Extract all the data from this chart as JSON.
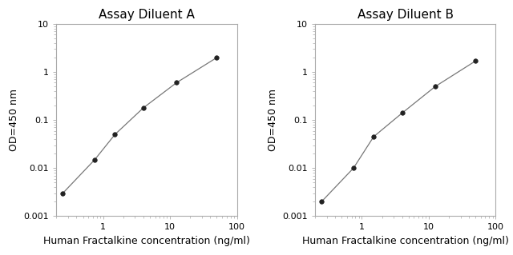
{
  "panel_A": {
    "title": "Assay Diluent A",
    "x": [
      0.25,
      0.75,
      1.5,
      4.0,
      12.5,
      50.0
    ],
    "y": [
      0.003,
      0.015,
      0.05,
      0.18,
      0.6,
      2.0
    ]
  },
  "panel_B": {
    "title": "Assay Diluent B",
    "x": [
      0.25,
      0.75,
      1.5,
      4.0,
      12.5,
      50.0
    ],
    "y": [
      0.002,
      0.01,
      0.045,
      0.14,
      0.5,
      1.7
    ]
  },
  "xlabel": "Human Fractalkine concentration (ng/ml)",
  "ylabel": "OD=450 nm",
  "xlim": [
    0.2,
    100
  ],
  "ylim": [
    0.001,
    10
  ],
  "xticks": [
    1,
    10,
    100
  ],
  "yticks": [
    0.001,
    0.01,
    0.1,
    1,
    10
  ],
  "line_color": "#777777",
  "marker_color": "#222222",
  "marker_size": 4,
  "title_fontsize": 11,
  "label_fontsize": 9,
  "tick_fontsize": 8,
  "spine_color": "#aaaaaa",
  "bg_color": "#ffffff"
}
